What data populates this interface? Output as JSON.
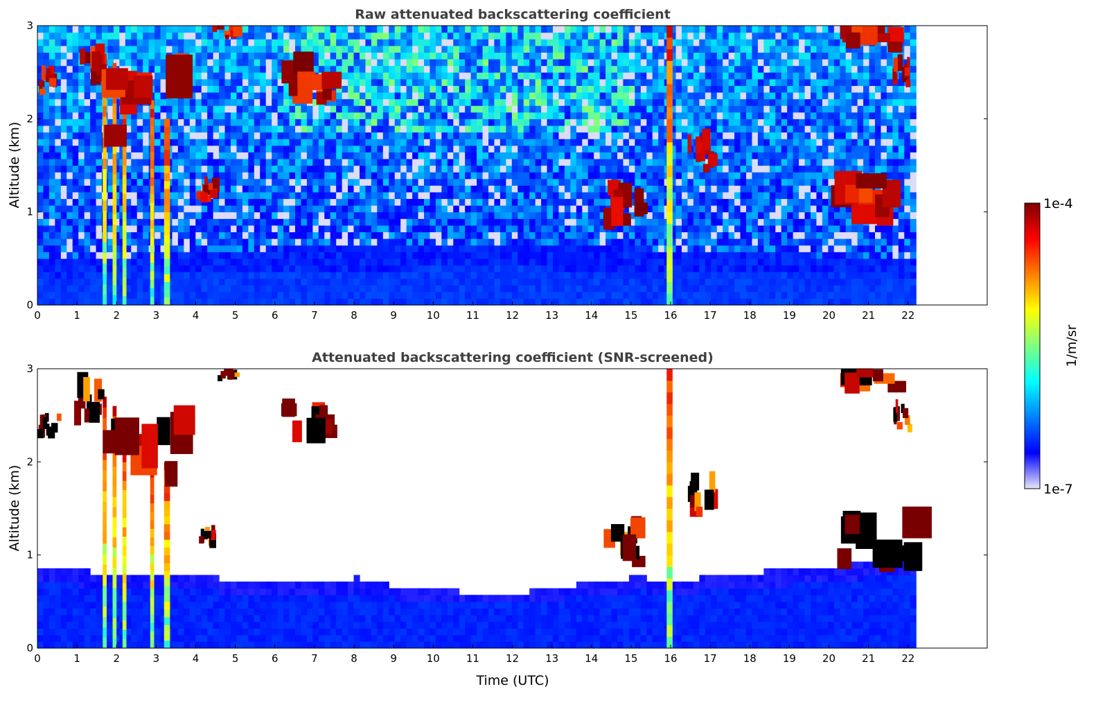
{
  "chart_data": [
    {
      "type": "heatmap",
      "title": "Raw attenuated backscattering coefficient",
      "xlabel": "",
      "ylabel": "Altitude (km)",
      "xlim": [
        0,
        24
      ],
      "ylim": [
        0,
        3
      ],
      "x_ticks": [
        "0",
        "1",
        "2",
        "3",
        "4",
        "5",
        "6",
        "7",
        "8",
        "9",
        "10",
        "11",
        "12",
        "13",
        "14",
        "15",
        "16",
        "17",
        "18",
        "19",
        "20",
        "21",
        "22"
      ],
      "y_ticks": [
        "0",
        "1",
        "2",
        "3"
      ],
      "data_time_range_utc": [
        0,
        22.2
      ],
      "grid": false,
      "screened": false,
      "features": [
        {
          "kind": "precipitation_column",
          "x": [
            1.65,
            1.75
          ],
          "y": [
            0,
            2.7
          ]
        },
        {
          "kind": "precipitation_column",
          "x": [
            1.9,
            2.0
          ],
          "y": [
            0,
            2.6
          ]
        },
        {
          "kind": "precipitation_column",
          "x": [
            2.15,
            2.25
          ],
          "y": [
            0,
            2.4
          ]
        },
        {
          "kind": "precipitation_column",
          "x": [
            2.85,
            2.95
          ],
          "y": [
            0,
            2.2
          ]
        },
        {
          "kind": "precipitation_column",
          "x": [
            3.2,
            3.35
          ],
          "y": [
            0,
            2.0
          ]
        },
        {
          "kind": "precipitation_column",
          "x": [
            15.9,
            16.05
          ],
          "y": [
            0,
            3.0
          ]
        },
        {
          "kind": "cloud",
          "x": [
            0.0,
            0.5
          ],
          "y": [
            2.25,
            2.45
          ]
        },
        {
          "kind": "cloud",
          "x": [
            0.9,
            1.6
          ],
          "y": [
            2.35,
            2.7
          ]
        },
        {
          "kind": "cloud",
          "x": [
            1.6,
            3.5
          ],
          "y": [
            1.7,
            2.35
          ]
        },
        {
          "kind": "cloud",
          "x": [
            4.0,
            4.5
          ],
          "y": [
            1.05,
            1.25
          ]
        },
        {
          "kind": "cloud",
          "x": [
            4.4,
            5.0
          ],
          "y": [
            2.85,
            3.0
          ]
        },
        {
          "kind": "cloud",
          "x": [
            6.0,
            7.3
          ],
          "y": [
            2.15,
            2.5
          ]
        },
        {
          "kind": "cloud",
          "x": [
            14.3,
            15.3
          ],
          "y": [
            0.8,
            1.2
          ]
        },
        {
          "kind": "cloud",
          "x": [
            16.4,
            17.0
          ],
          "y": [
            1.4,
            1.7
          ]
        },
        {
          "kind": "cloud",
          "x": [
            20.0,
            22.0
          ],
          "y": [
            0.8,
            1.3
          ]
        },
        {
          "kind": "cloud",
          "x": [
            20.2,
            21.5
          ],
          "y": [
            2.7,
            3.0
          ]
        },
        {
          "kind": "cloud",
          "x": [
            21.6,
            22.0
          ],
          "y": [
            2.3,
            2.55
          ]
        },
        {
          "kind": "boundary_layer",
          "x": [
            0,
            22.2
          ],
          "y": [
            0,
            0.5
          ]
        }
      ]
    },
    {
      "type": "heatmap",
      "title": "Attenuated backscattering coefficient (SNR-screened)",
      "xlabel": "Time (UTC)",
      "ylabel": "Altitude (km)",
      "xlim": [
        0,
        24
      ],
      "ylim": [
        0,
        3
      ],
      "x_ticks": [
        "0",
        "1",
        "2",
        "3",
        "4",
        "5",
        "6",
        "7",
        "8",
        "9",
        "10",
        "11",
        "12",
        "13",
        "14",
        "15",
        "16",
        "17",
        "18",
        "19",
        "20",
        "21",
        "22"
      ],
      "y_ticks": [
        "0",
        "1",
        "2",
        "3"
      ],
      "data_time_range_utc": [
        0,
        22.2
      ],
      "grid": false,
      "screened": true,
      "boundary_layer_top_km": [
        [
          0,
          0.85
        ],
        [
          1,
          0.8
        ],
        [
          2,
          0.75
        ],
        [
          3,
          0.72
        ],
        [
          4,
          0.78
        ],
        [
          5,
          0.65
        ],
        [
          6,
          0.7
        ],
        [
          7,
          0.68
        ],
        [
          8,
          0.72
        ],
        [
          9,
          0.62
        ],
        [
          10,
          0.6
        ],
        [
          11,
          0.55
        ],
        [
          12,
          0.55
        ],
        [
          13,
          0.6
        ],
        [
          14,
          0.68
        ],
        [
          15,
          0.72
        ],
        [
          16,
          0.7
        ],
        [
          17,
          0.72
        ],
        [
          18,
          0.78
        ],
        [
          19,
          0.8
        ],
        [
          20,
          0.85
        ],
        [
          21,
          0.9
        ],
        [
          22,
          0.92
        ],
        [
          22.2,
          0.92
        ]
      ]
    }
  ],
  "colorbar": {
    "label": "1/m/sr",
    "max_label": "1e-4",
    "min_label": "1e-7",
    "colormap": "jet",
    "colors": [
      "#e6e6f8",
      "#0000ff",
      "#0080ff",
      "#00ffff",
      "#80ff80",
      "#ffff00",
      "#ff8000",
      "#ff0000",
      "#800000"
    ]
  }
}
